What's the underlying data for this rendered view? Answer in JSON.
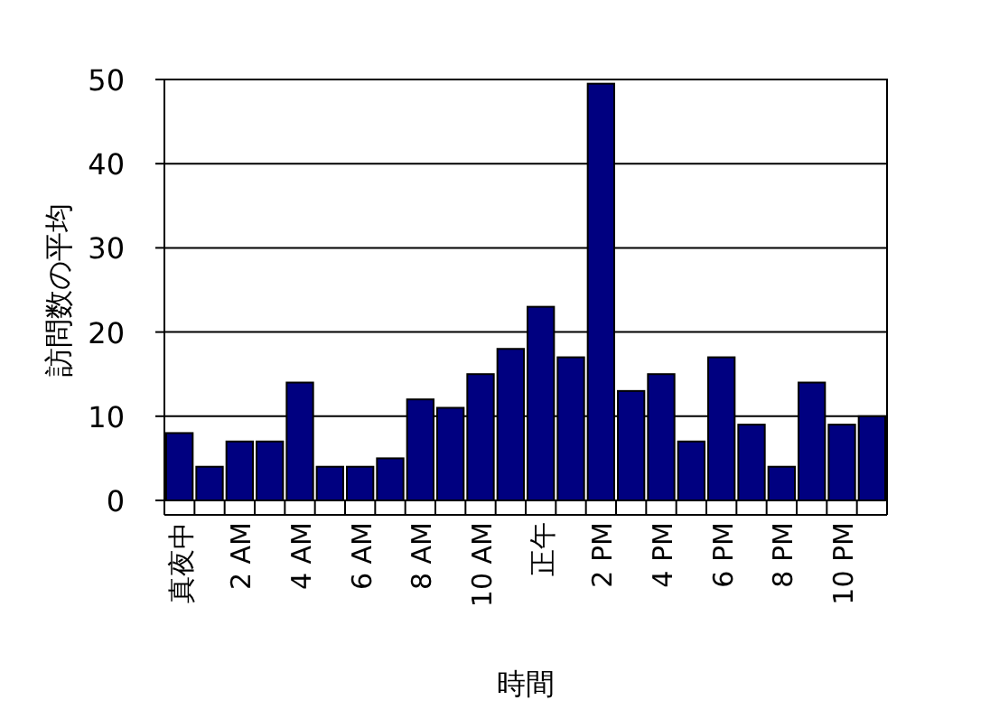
{
  "chart_data": {
    "type": "bar",
    "xlabel": "時間",
    "ylabel": "訪問数の平均",
    "categories": [
      "真夜中",
      null,
      "2 AM",
      null,
      "4 AM",
      null,
      "6 AM",
      null,
      "8 AM",
      null,
      "10 AM",
      null,
      "正午",
      null,
      "2 PM",
      null,
      "4 PM",
      null,
      "6 PM",
      null,
      "8 PM",
      null,
      "10 PM",
      null
    ],
    "values": [
      8,
      4,
      7,
      7,
      14,
      4,
      4,
      5,
      12,
      11,
      15,
      18,
      23,
      17,
      49.5,
      13,
      15,
      7,
      17,
      9,
      4,
      14,
      9,
      10
    ],
    "color": "#000080",
    "ylim": [
      0,
      50
    ],
    "yticks": [
      0,
      10,
      20,
      30,
      40,
      50
    ],
    "grid": "y"
  }
}
